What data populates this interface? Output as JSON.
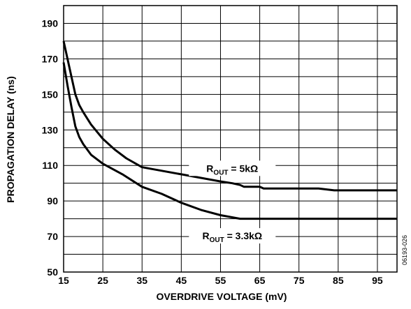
{
  "chart_data": {
    "type": "line",
    "xlabel": "OVERDRIVE VOLTAGE (mV)",
    "ylabel": "PROPAGATION DELAY (ns)",
    "xlim": [
      15,
      100
    ],
    "ylim": [
      50,
      200
    ],
    "x_ticks": [
      15,
      25,
      35,
      45,
      55,
      65,
      75,
      85,
      95
    ],
    "y_ticks": [
      50,
      70,
      90,
      110,
      130,
      150,
      170,
      190
    ],
    "grid": true,
    "series": [
      {
        "name": "ROUT = 5kΩ",
        "x": [
          15,
          16,
          17,
          18,
          19,
          20,
          22,
          25,
          28,
          31,
          35,
          40,
          45,
          50,
          55,
          58,
          60,
          61,
          63,
          65,
          66,
          67,
          70,
          75,
          80,
          84,
          90,
          95,
          100
        ],
        "y": [
          180,
          170,
          160,
          150,
          144,
          140,
          133,
          125,
          119,
          114,
          109,
          107,
          105,
          103,
          101,
          100,
          99,
          98,
          98,
          98,
          97,
          97,
          97,
          97,
          97,
          96,
          96,
          96,
          96
        ]
      },
      {
        "name": "ROUT = 3.3kΩ",
        "x": [
          15,
          16,
          17,
          18,
          19,
          20,
          22,
          25,
          30,
          35,
          40,
          45,
          50,
          55,
          60,
          65,
          70,
          80,
          90,
          100
        ],
        "y": [
          168,
          155,
          143,
          132,
          126,
          122,
          116,
          111,
          105,
          98,
          94,
          89,
          85,
          82,
          80,
          80,
          80,
          80,
          80,
          80
        ]
      }
    ],
    "annotations": [
      {
        "label_main": "R",
        "label_sub": "OUT",
        "label_rest": " = 5kΩ",
        "x": 58,
        "y": 108
      },
      {
        "label_main": "R",
        "label_sub": "OUT",
        "label_rest": " = 3.3kΩ",
        "x": 58,
        "y": 70
      }
    ],
    "figure_id": "06193-026"
  }
}
